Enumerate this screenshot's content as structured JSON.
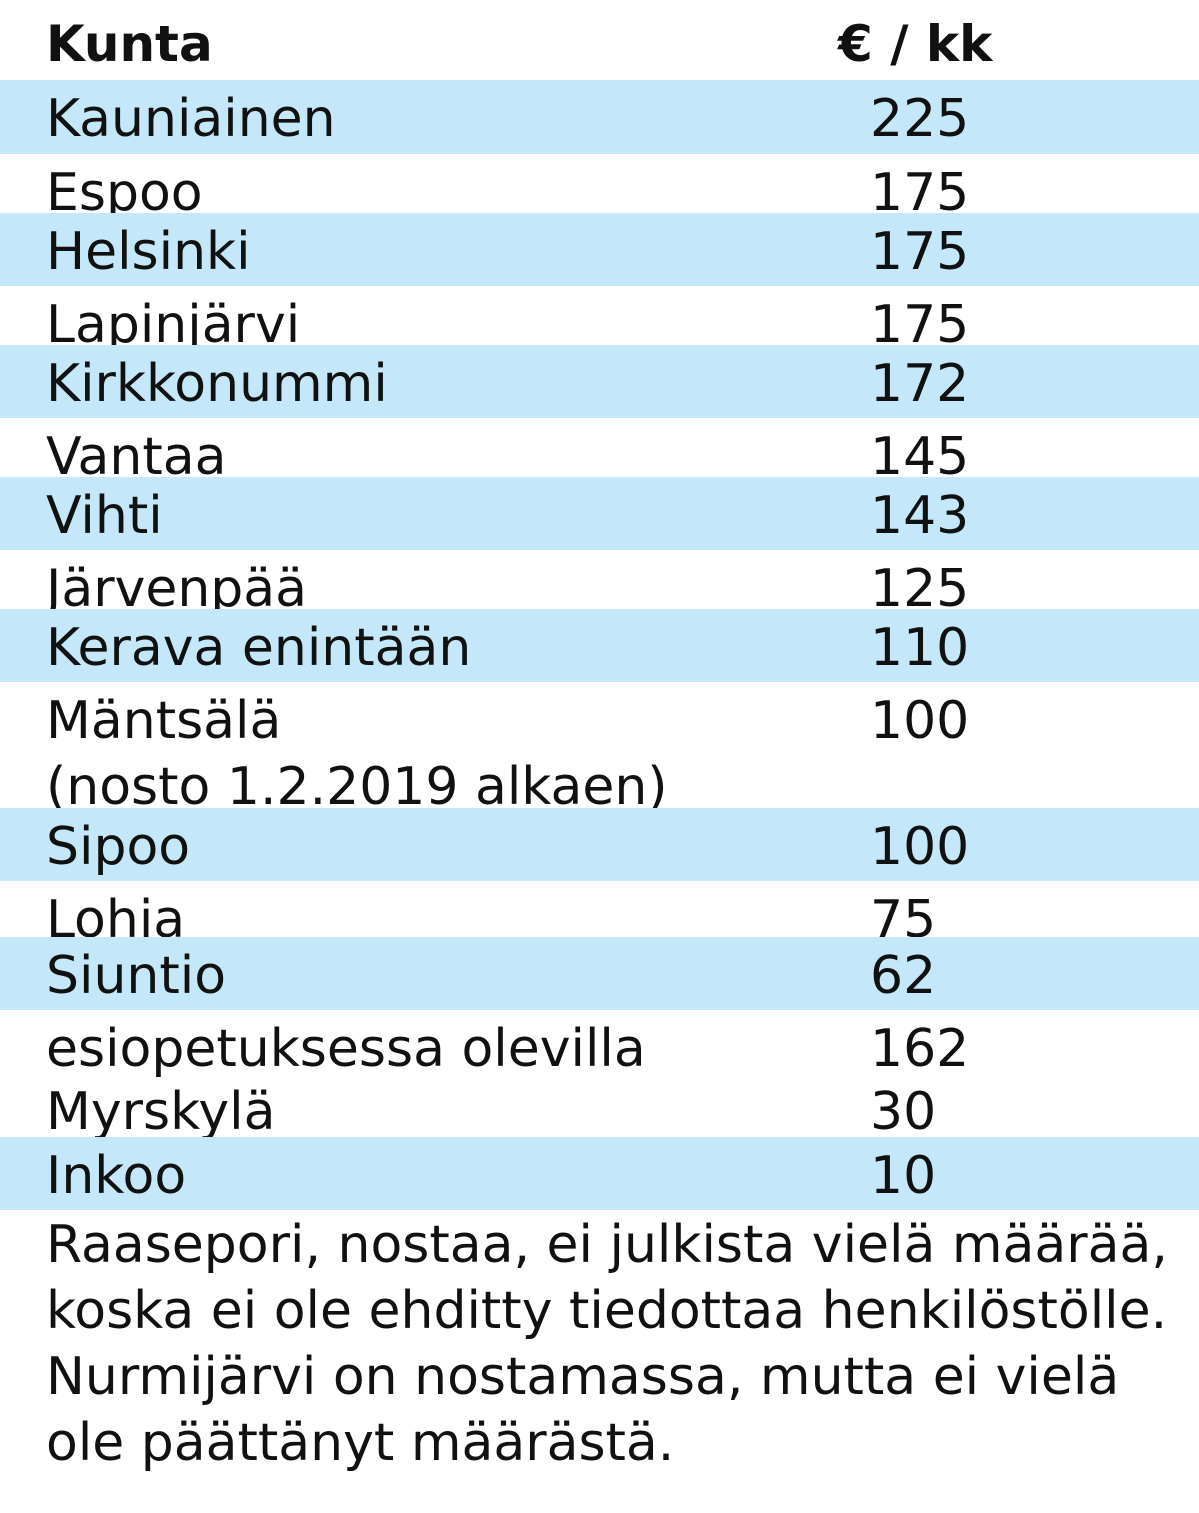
{
  "chart_data": {
    "type": "table",
    "columns": [
      "Kunta",
      "€ / kk"
    ],
    "rows": [
      {
        "name": "Kauniainen",
        "value": "225",
        "shaded": true
      },
      {
        "name": "Espoo",
        "value": "175",
        "shaded": false
      },
      {
        "name": "Helsinki",
        "value": "175",
        "shaded": true
      },
      {
        "name": "Lapinjärvi",
        "value": "175",
        "shaded": false
      },
      {
        "name": "Kirkkonummi",
        "value": "172",
        "shaded": true
      },
      {
        "name": "Vantaa",
        "value": "145",
        "shaded": false
      },
      {
        "name": "Vihti",
        "value": "143",
        "shaded": true
      },
      {
        "name": "Järvenpää",
        "value": "125",
        "shaded": false
      },
      {
        "name": "Kerava enintään",
        "value": "110",
        "shaded": true
      },
      {
        "name": "Mäntsälä",
        "subname": "(nosto 1.2.2019 alkaen)",
        "value": "100",
        "shaded": false
      },
      {
        "name": "Sipoo",
        "value": "100",
        "shaded": true
      },
      {
        "name": "Lohja",
        "value": "75",
        "shaded": false
      },
      {
        "name": "Siuntio",
        "value": "62",
        "shaded": true
      },
      {
        "name": "esiopetuksessa olevilla",
        "value": "162",
        "shaded": false
      },
      {
        "name": "Myrskylä",
        "value": "30",
        "shaded": false
      },
      {
        "name": "Inkoo",
        "value": "10",
        "shaded": true
      }
    ],
    "notes": [
      "Raasepori, nostaa, ei julkista vielä määrää, koska ei ole ehditty tiedottaa henkilöstölle.",
      "Nurmijärvi on nostamassa, mutta ei vielä ole päättänyt määrästä."
    ],
    "colors": {
      "shade": "#c4e8f9",
      "text": "#111111"
    }
  }
}
